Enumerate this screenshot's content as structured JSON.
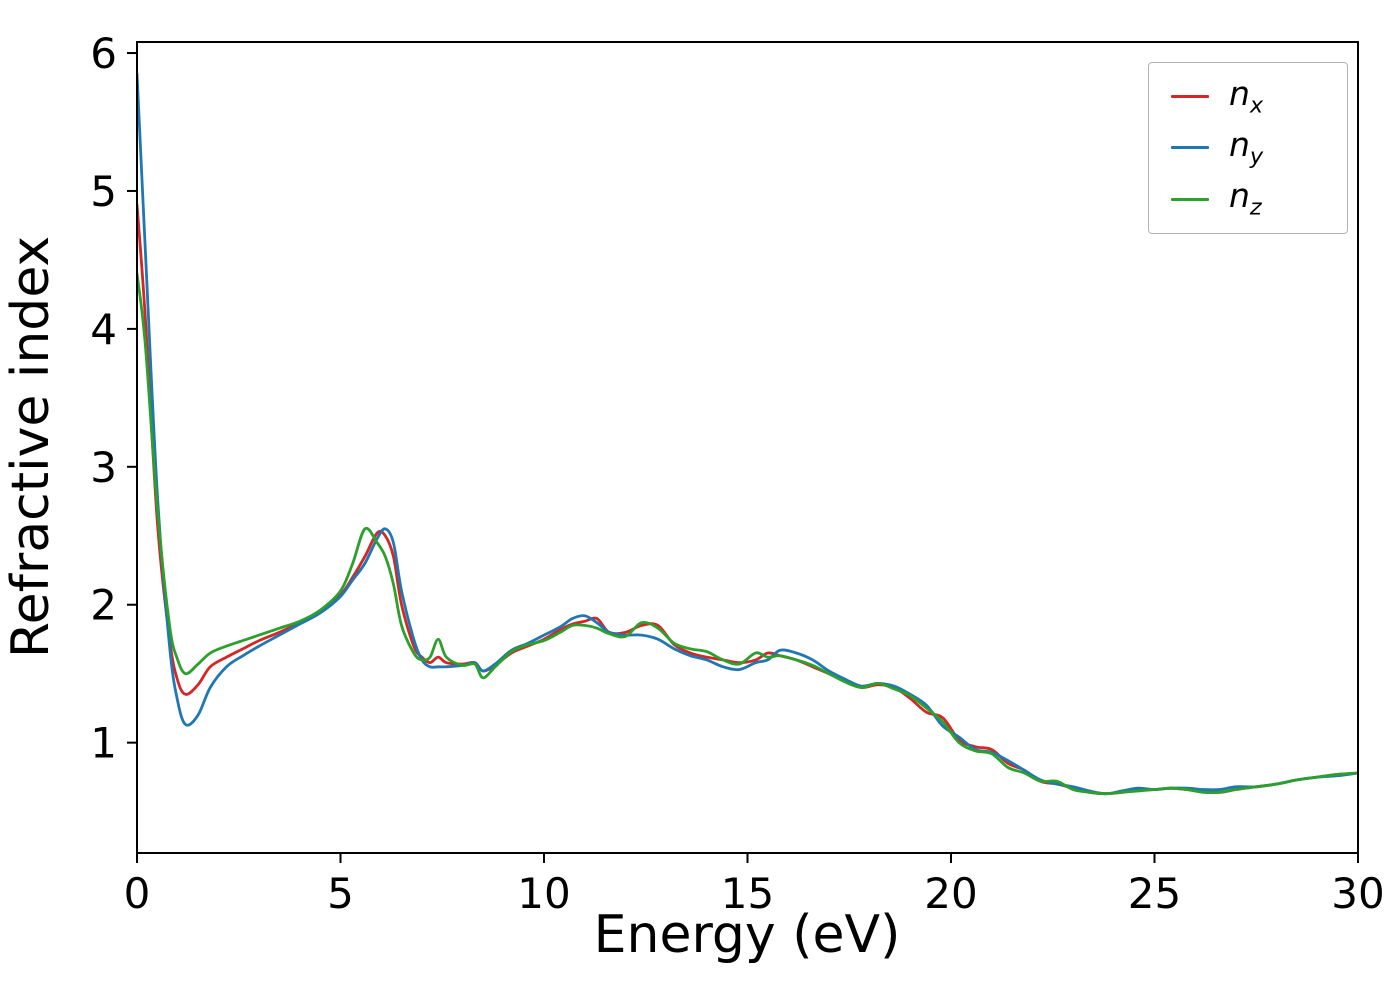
{
  "figure": {
    "background": "#ffffff"
  },
  "chart_data": {
    "type": "line",
    "title": "",
    "xlabel": "Energy (eV)",
    "ylabel": "Refractive index",
    "xlim": [
      0,
      30
    ],
    "ylim": [
      0.2,
      6.08
    ],
    "xticks": [
      0,
      5,
      10,
      15,
      20,
      25,
      30
    ],
    "yticks": [
      1,
      2,
      3,
      4,
      5,
      6
    ],
    "grid": false,
    "legend_position": "upper right",
    "x": [
      0,
      0.2,
      0.5,
      0.8,
      1.0,
      1.2,
      1.5,
      1.8,
      2.2,
      2.6,
      3.0,
      3.5,
      4.0,
      4.5,
      5.0,
      5.3,
      5.6,
      5.9,
      6.1,
      6.3,
      6.5,
      6.8,
      7.0,
      7.2,
      7.4,
      7.6,
      8.0,
      8.3,
      8.5,
      8.8,
      9.2,
      9.6,
      10.0,
      10.4,
      10.7,
      11.0,
      11.3,
      11.6,
      12.0,
      12.4,
      12.8,
      13.2,
      13.6,
      14.0,
      14.4,
      14.8,
      15.2,
      15.5,
      15.8,
      16.2,
      16.6,
      17.0,
      17.4,
      17.8,
      18.2,
      18.6,
      19.0,
      19.4,
      19.8,
      20.2,
      20.6,
      21.0,
      21.4,
      21.8,
      22.2,
      22.6,
      23.0,
      23.4,
      23.8,
      24.2,
      24.6,
      25.0,
      25.4,
      25.8,
      26.2,
      26.6,
      27.0,
      27.5,
      28.0,
      28.5,
      29.0,
      29.5,
      30.0
    ],
    "series": [
      {
        "name": "n_x",
        "label_base": "n",
        "label_sub": "x",
        "color": "#d62728",
        "values": [
          4.9,
          4.1,
          2.6,
          1.75,
          1.45,
          1.35,
          1.42,
          1.55,
          1.62,
          1.68,
          1.74,
          1.8,
          1.87,
          1.95,
          2.07,
          2.2,
          2.35,
          2.52,
          2.5,
          2.35,
          2.0,
          1.7,
          1.62,
          1.58,
          1.62,
          1.58,
          1.57,
          1.58,
          1.52,
          1.56,
          1.65,
          1.7,
          1.75,
          1.82,
          1.86,
          1.88,
          1.9,
          1.8,
          1.8,
          1.85,
          1.85,
          1.71,
          1.65,
          1.62,
          1.6,
          1.58,
          1.6,
          1.65,
          1.63,
          1.6,
          1.55,
          1.5,
          1.45,
          1.4,
          1.42,
          1.4,
          1.32,
          1.22,
          1.18,
          1.02,
          0.97,
          0.95,
          0.85,
          0.8,
          0.72,
          0.7,
          0.67,
          0.64,
          0.63,
          0.64,
          0.66,
          0.66,
          0.67,
          0.66,
          0.65,
          0.64,
          0.66,
          0.68,
          0.7,
          0.73,
          0.75,
          0.77,
          0.78
        ]
      },
      {
        "name": "n_y",
        "label_base": "n",
        "label_sub": "y",
        "color": "#1f77b4",
        "values": [
          5.85,
          4.6,
          2.8,
          1.7,
          1.3,
          1.13,
          1.2,
          1.4,
          1.55,
          1.63,
          1.7,
          1.78,
          1.86,
          1.94,
          2.06,
          2.18,
          2.3,
          2.48,
          2.55,
          2.45,
          2.1,
          1.75,
          1.6,
          1.55,
          1.55,
          1.55,
          1.56,
          1.58,
          1.52,
          1.57,
          1.67,
          1.72,
          1.78,
          1.84,
          1.9,
          1.92,
          1.87,
          1.8,
          1.78,
          1.78,
          1.75,
          1.68,
          1.63,
          1.6,
          1.55,
          1.53,
          1.58,
          1.6,
          1.67,
          1.65,
          1.6,
          1.52,
          1.46,
          1.41,
          1.43,
          1.41,
          1.35,
          1.27,
          1.12,
          1.04,
          0.95,
          0.93,
          0.87,
          0.8,
          0.73,
          0.7,
          0.68,
          0.65,
          0.63,
          0.65,
          0.67,
          0.66,
          0.67,
          0.67,
          0.66,
          0.66,
          0.68,
          0.68,
          0.7,
          0.73,
          0.75,
          0.76,
          0.78
        ]
      },
      {
        "name": "n_z",
        "label_base": "n",
        "label_sub": "z",
        "color": "#2ca02c",
        "values": [
          4.4,
          3.9,
          2.7,
          1.85,
          1.6,
          1.5,
          1.57,
          1.65,
          1.7,
          1.74,
          1.78,
          1.83,
          1.88,
          1.96,
          2.1,
          2.3,
          2.55,
          2.45,
          2.35,
          2.15,
          1.85,
          1.65,
          1.6,
          1.62,
          1.75,
          1.62,
          1.56,
          1.57,
          1.47,
          1.55,
          1.66,
          1.71,
          1.74,
          1.8,
          1.85,
          1.85,
          1.83,
          1.79,
          1.77,
          1.87,
          1.83,
          1.72,
          1.68,
          1.66,
          1.6,
          1.57,
          1.65,
          1.62,
          1.63,
          1.6,
          1.56,
          1.5,
          1.44,
          1.4,
          1.43,
          1.39,
          1.34,
          1.25,
          1.15,
          1.0,
          0.94,
          0.92,
          0.82,
          0.78,
          0.72,
          0.72,
          0.66,
          0.64,
          0.63,
          0.64,
          0.65,
          0.66,
          0.67,
          0.66,
          0.64,
          0.64,
          0.66,
          0.68,
          0.7,
          0.73,
          0.75,
          0.77,
          0.78
        ]
      }
    ]
  }
}
